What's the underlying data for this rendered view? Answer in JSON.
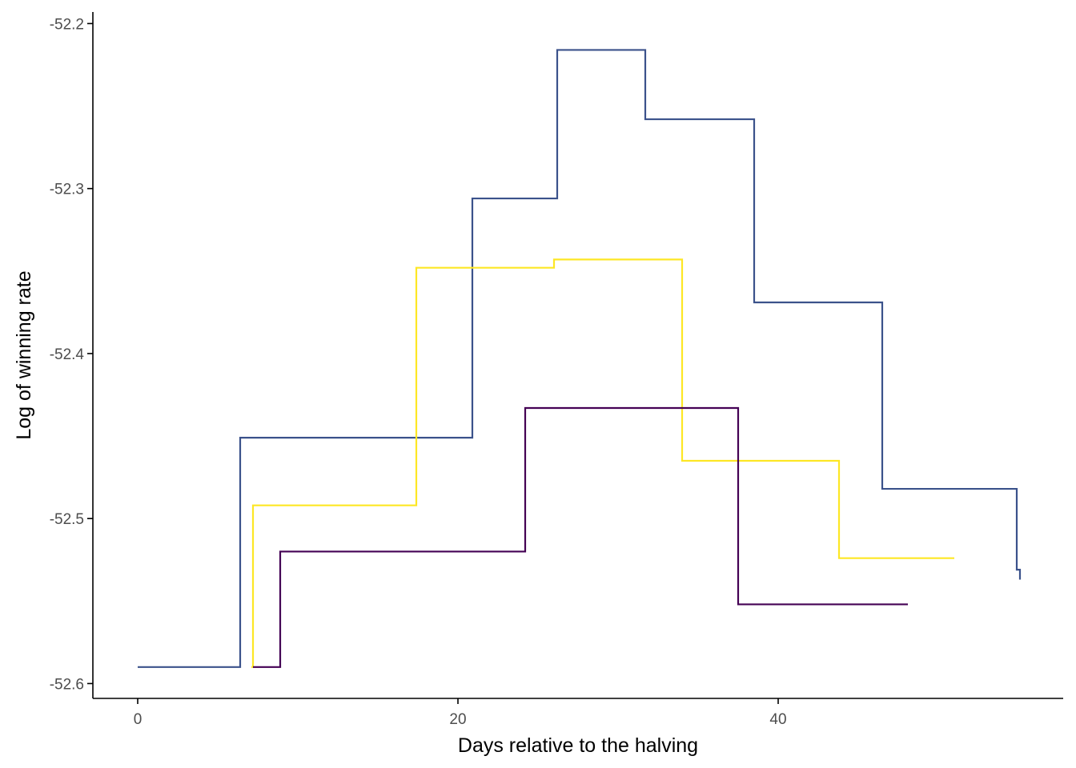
{
  "chart_data": {
    "type": "line",
    "subtype": "step",
    "title": "",
    "xlabel": "Days relative to the halving",
    "ylabel": "Log of winning rate",
    "xlim": [
      -2.8,
      57.8
    ],
    "ylim": [
      -52.609,
      -52.193
    ],
    "x_ticks": [
      0,
      20,
      40
    ],
    "y_ticks": [
      -52.6,
      -52.5,
      -52.4,
      -52.3,
      -52.2
    ],
    "x_tick_labels": [
      "0",
      "20",
      "40"
    ],
    "y_tick_labels": [
      "-52.6",
      "-52.5",
      "-52.4",
      "-52.3",
      "-52.2"
    ],
    "grid": false,
    "legend": "none",
    "series": [
      {
        "color": "#3B528B",
        "x": [
          0,
          6.4,
          14.3,
          20.9,
          26.2,
          31.7,
          38.5,
          46.5,
          54.9,
          55.1
        ],
        "y": [
          -52.59,
          -52.451,
          -52.451,
          -52.306,
          -52.216,
          -52.258,
          -52.369,
          -52.482,
          -52.531,
          -52.537
        ]
      },
      {
        "color": "#FDE725",
        "x": [
          7.1,
          7.2,
          17.4,
          26.0,
          34.0,
          43.8,
          51.0
        ],
        "y": [
          -52.59,
          -52.492,
          -52.348,
          -52.343,
          -52.465,
          -52.524,
          -52.524
        ]
      },
      {
        "color": "#440154",
        "x": [
          7.2,
          8.9,
          24.2,
          37.5,
          48.1
        ],
        "y": [
          -52.59,
          -52.52,
          -52.433,
          -52.552,
          -52.552
        ]
      }
    ]
  }
}
